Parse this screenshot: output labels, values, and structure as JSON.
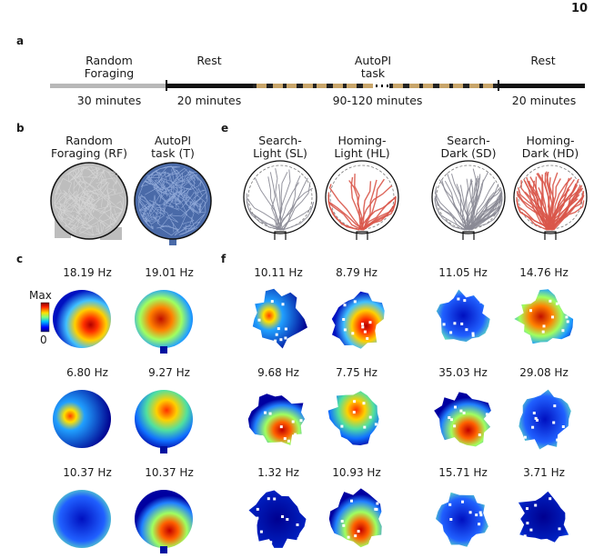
{
  "page_number": "10",
  "panels": {
    "a": {
      "letter": "a",
      "phases": [
        {
          "label": "Random\nForaging",
          "duration": "30 minutes"
        },
        {
          "label": "Rest",
          "duration": "20 minutes"
        },
        {
          "label": "AutoPI\ntask",
          "duration": "90-120 minutes"
        },
        {
          "label": "Rest",
          "duration": "20 minutes"
        }
      ],
      "colors": {
        "random_foraging": "#b8b8b8",
        "rest": "#111111",
        "light": "#c8a56a",
        "dark": "#222222"
      }
    },
    "b": {
      "letter": "b",
      "columns": [
        {
          "label": "Random\nForaging (RF)",
          "color": "#b0b0b0"
        },
        {
          "label": "AutoPI\ntask (T)",
          "color": "#4a6aa8"
        }
      ]
    },
    "e": {
      "letter": "e",
      "columns": [
        {
          "label": "Search-\nLight (SL)",
          "color": "#8a8a95"
        },
        {
          "label": "Homing-\nLight (HL)",
          "color": "#d9574a"
        },
        {
          "label": "Search-\nDark (SD)",
          "color": "#8a8a95"
        },
        {
          "label": "Homing-\nDark (HD)",
          "color": "#d9574a"
        }
      ]
    },
    "c": {
      "letter": "c",
      "colorbar": {
        "max_label": "Max",
        "min_label": "0"
      },
      "rates": [
        [
          "18.19 Hz",
          "19.01 Hz"
        ],
        [
          "6.80 Hz",
          "9.27 Hz"
        ],
        [
          "10.37 Hz",
          "10.37 Hz"
        ]
      ]
    },
    "f": {
      "letter": "f",
      "rates": [
        [
          "10.11 Hz",
          "8.79 Hz",
          "11.05 Hz",
          "14.76 Hz"
        ],
        [
          "9.68 Hz",
          "7.75 Hz",
          "35.03 Hz",
          "29.08 Hz"
        ],
        [
          "1.32 Hz",
          "10.93 Hz",
          "15.71 Hz",
          "3.71 Hz"
        ]
      ]
    }
  }
}
